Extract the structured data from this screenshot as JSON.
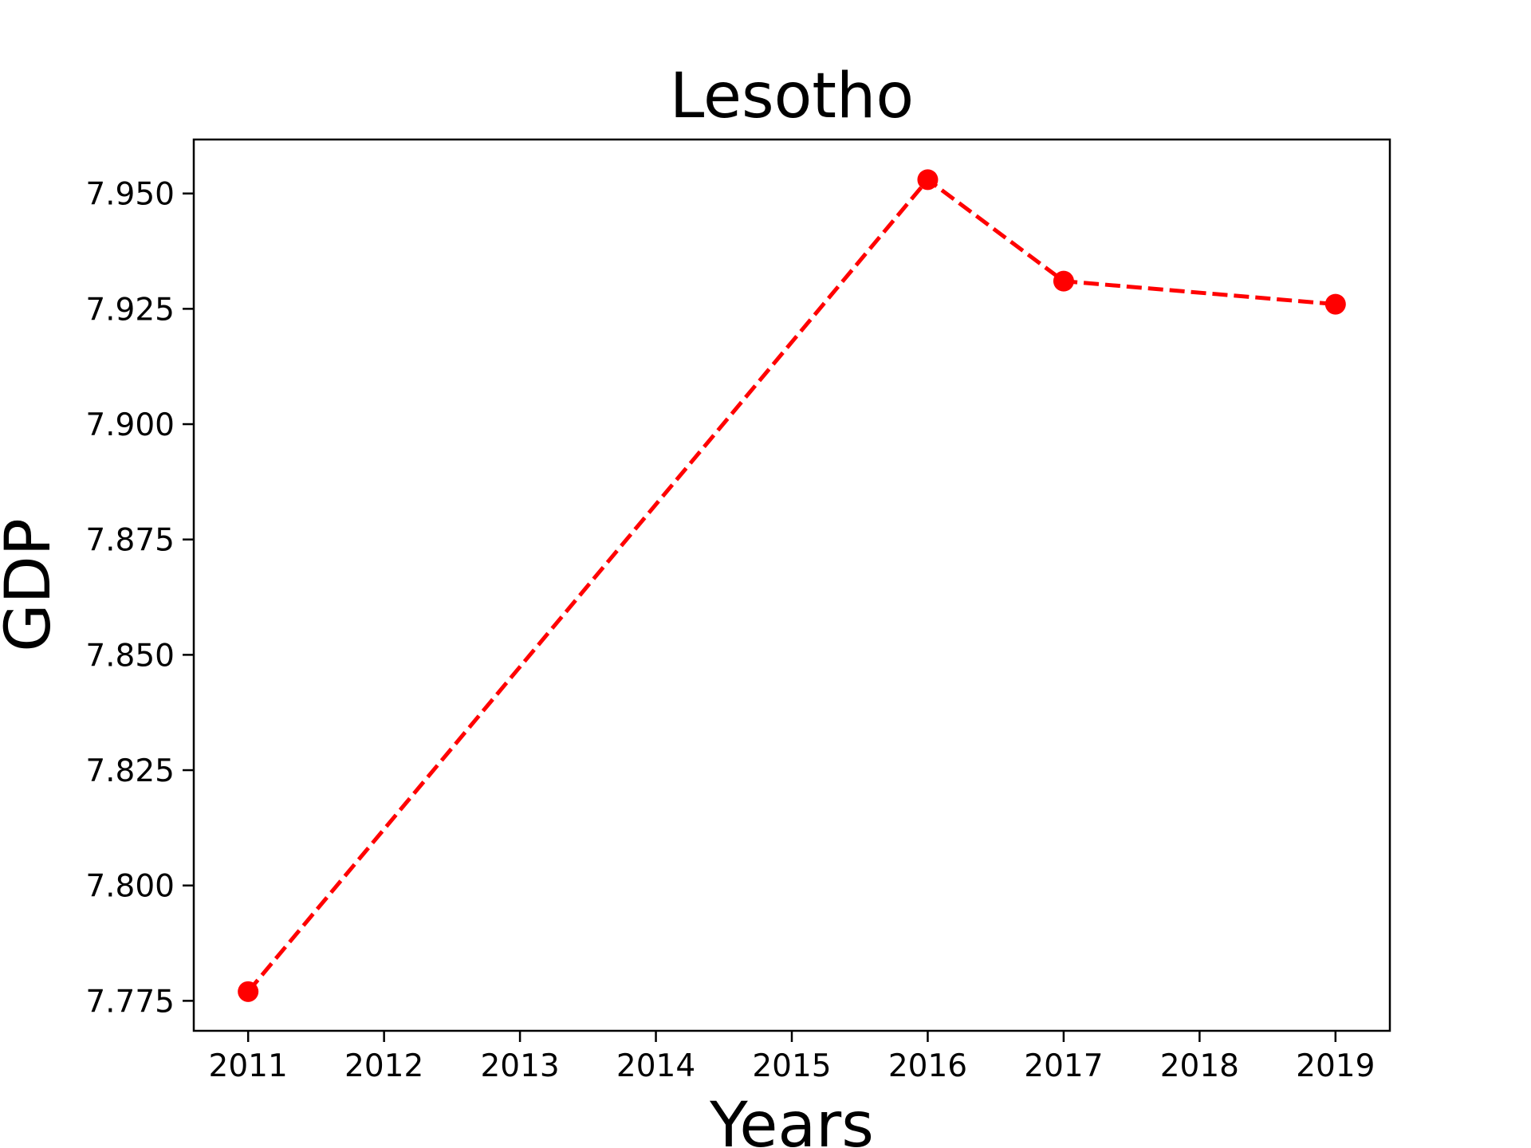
{
  "chart_data": {
    "type": "line",
    "title": "Lesotho",
    "xlabel": "Years",
    "ylabel": "GDP",
    "x": [
      2011,
      2016,
      2017,
      2019
    ],
    "series": [
      {
        "values": [
          7.777,
          7.953,
          7.931,
          7.926
        ]
      }
    ],
    "xlim": [
      2010.6,
      2019.4
    ],
    "ylim": [
      7.7685,
      7.9617
    ],
    "xticks": [
      "2011",
      "2012",
      "2013",
      "2014",
      "2015",
      "2016",
      "2017",
      "2018",
      "2019"
    ],
    "yticks": [
      "7.775",
      "7.800",
      "7.825",
      "7.850",
      "7.875",
      "7.900",
      "7.925",
      "7.950"
    ],
    "line_style": "dashed",
    "marker": "circle",
    "color": "#ff0000",
    "grid": false,
    "legend": "none"
  }
}
